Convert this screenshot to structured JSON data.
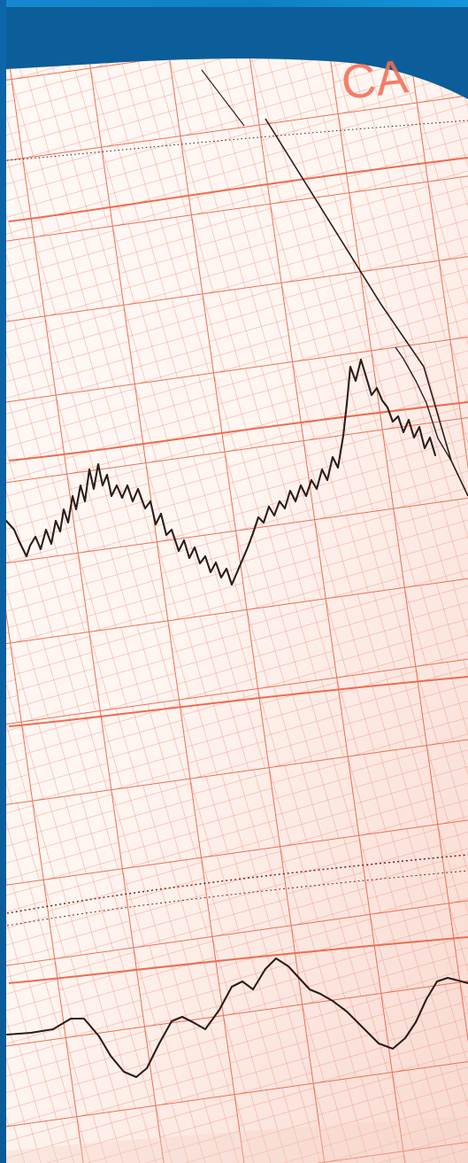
{
  "scene": {
    "subject": "ecg-paper",
    "visible_text": "CA",
    "colors": {
      "background_blue": "#0a5d97",
      "paper": "#fff7f3",
      "grid_major": "#ef6b4e",
      "grid_minor": "#f3a28d",
      "trace": "#2d1f1c"
    }
  }
}
